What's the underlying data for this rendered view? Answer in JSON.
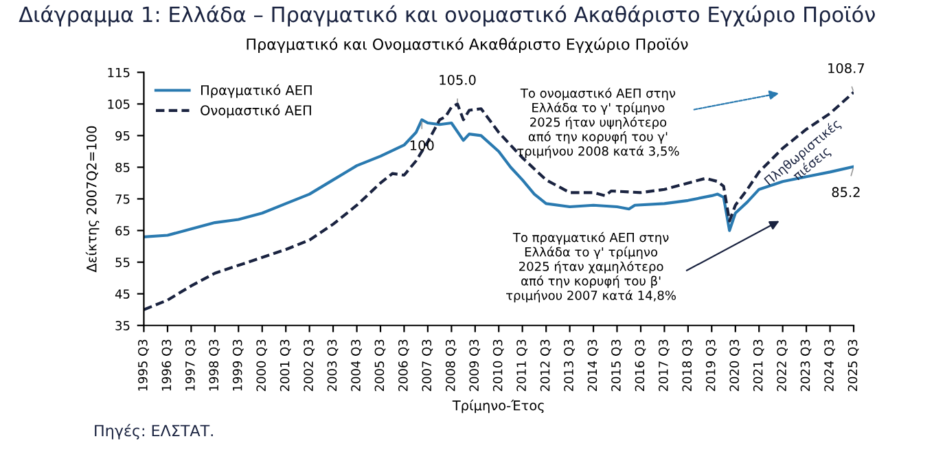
{
  "chart_data": {
    "type": "line",
    "title": "Διάγραμμα 1: Ελλάδα – Πραγματικό και ονομαστικό Ακαθάριστο Εγχώριο Προϊόν",
    "subtitle": "Πραγματικό και Ονομαστικό Ακαθάριστο Εγχώριο Προϊόν",
    "xlabel": "Τρίμηνο-Έτος",
    "ylabel": "Δείκτης 2007Q2=100",
    "series": [
      {
        "name": "Πραγματικό ΑΕΠ",
        "color": "#2a7ab0",
        "line_style": "solid",
        "x": [
          "1995-07",
          "1996-07",
          "1997-07",
          "1998-07",
          "1999-07",
          "2000-07",
          "2001-07",
          "2002-07",
          "2003-07",
          "2004-07",
          "2005-07",
          "2006-07",
          "2007-01",
          "2007-04",
          "2007-07",
          "2008-01",
          "2008-07",
          "2009-01",
          "2009-04",
          "2009-10",
          "2010-07",
          "2011-01",
          "2011-07",
          "2012-01",
          "2012-07",
          "2013-07",
          "2014-07",
          "2015-07",
          "2016-01",
          "2016-04",
          "2017-07",
          "2018-07",
          "2019-07",
          "2019-10",
          "2020-01",
          "2020-04",
          "2020-07",
          "2021-01",
          "2021-07",
          "2022-07",
          "2023-07",
          "2024-07",
          "2025-07"
        ],
        "values": [
          63,
          63.5,
          65.5,
          67.5,
          68.5,
          70.5,
          73.5,
          76.5,
          81,
          85.5,
          88.5,
          92,
          96,
          100,
          99,
          98.5,
          99,
          93.5,
          95.5,
          95,
          90,
          85,
          81,
          76.5,
          73.5,
          72.5,
          73,
          72.5,
          71.8,
          73,
          73.5,
          74.5,
          76,
          76.5,
          75.5,
          65,
          70.5,
          74,
          78,
          80.5,
          82,
          83.5,
          85.2
        ]
      },
      {
        "name": "Ονομαστικό ΑΕΠ",
        "color": "#1a2340",
        "line_style": "dashed",
        "x": [
          "1995-07",
          "1996-07",
          "1997-07",
          "1998-07",
          "1999-07",
          "2000-07",
          "2001-07",
          "2002-07",
          "2003-07",
          "2004-07",
          "2005-07",
          "2006-01",
          "2006-07",
          "2007-01",
          "2007-07",
          "2008-01",
          "2008-04",
          "2008-07",
          "2008-10",
          "2009-01",
          "2009-04",
          "2009-10",
          "2010-07",
          "2011-07",
          "2012-07",
          "2013-07",
          "2014-07",
          "2015-01",
          "2015-04",
          "2016-07",
          "2017-07",
          "2018-07",
          "2019-04",
          "2019-10",
          "2020-01",
          "2020-04",
          "2020-07",
          "2021-01",
          "2021-07",
          "2022-07",
          "2023-07",
          "2024-07",
          "2025-07"
        ],
        "values": [
          40,
          43,
          47.5,
          51.5,
          54,
          56.5,
          59,
          62,
          67,
          73,
          80,
          83,
          82.5,
          87,
          93,
          100,
          101,
          104,
          105,
          100,
          103,
          103.5,
          96,
          88,
          81,
          77,
          77,
          76,
          77.5,
          77,
          78,
          80,
          81.5,
          80.5,
          79,
          68,
          73,
          78,
          83.5,
          91,
          97,
          102,
          108.7
        ]
      }
    ],
    "xlim": [
      "1995-07",
      "2025-07"
    ],
    "xticks": [
      {
        "value": "1995-07",
        "label": "1995 Q3"
      },
      {
        "value": "1996-07",
        "label": "1996 Q3"
      },
      {
        "value": "1997-07",
        "label": "1997 Q3"
      },
      {
        "value": "1998-07",
        "label": "1998 Q3"
      },
      {
        "value": "1999-07",
        "label": "1999 Q3"
      },
      {
        "value": "2000-07",
        "label": "2000 Q3"
      },
      {
        "value": "2001-07",
        "label": "2001 Q3"
      },
      {
        "value": "2002-07",
        "label": "2002 Q3"
      },
      {
        "value": "2003-07",
        "label": "2003 Q3"
      },
      {
        "value": "2004-07",
        "label": "2004 Q3"
      },
      {
        "value": "2005-07",
        "label": "2005 Q3"
      },
      {
        "value": "2006-07",
        "label": "2006 Q3"
      },
      {
        "value": "2007-07",
        "label": "2007 Q3"
      },
      {
        "value": "2008-07",
        "label": "2008 Q3"
      },
      {
        "value": "2009-07",
        "label": "2009 Q3"
      },
      {
        "value": "2010-07",
        "label": "2010 Q3"
      },
      {
        "value": "2011-07",
        "label": "2011 Q3"
      },
      {
        "value": "2012-07",
        "label": "2012 Q3"
      },
      {
        "value": "2013-07",
        "label": "2013 Q3"
      },
      {
        "value": "2014-07",
        "label": "2014 Q3"
      },
      {
        "value": "2015-07",
        "label": "2015 Q3"
      },
      {
        "value": "2016-07",
        "label": "2016 Q3"
      },
      {
        "value": "2017-07",
        "label": "2017 Q3"
      },
      {
        "value": "2018-07",
        "label": "2018 Q3"
      },
      {
        "value": "2019-07",
        "label": "2019 Q3"
      },
      {
        "value": "2020-07",
        "label": "2020 Q3"
      },
      {
        "value": "2021-07",
        "label": "2021 Q3"
      },
      {
        "value": "2022-07",
        "label": "2022 Q3"
      },
      {
        "value": "2023-07",
        "label": "2023 Q3"
      },
      {
        "value": "2024-07",
        "label": "2024 Q3"
      },
      {
        "value": "2025-07",
        "label": "2025 Q3"
      }
    ],
    "ylim": [
      35,
      115
    ],
    "yticks": [
      35,
      45,
      55,
      65,
      75,
      85,
      95,
      105,
      115
    ],
    "grid": false,
    "legend": "top left",
    "marker": "none",
    "annotations": [
      {
        "text": "105.0",
        "x": "2008-10",
        "y": 105
      },
      {
        "text": "100",
        "x": "2007-04",
        "y": 100
      },
      {
        "text": "108.7",
        "x": "2025-07",
        "y": 108.7
      },
      {
        "text": "85.2",
        "x": "2025-07",
        "y": 85.2
      },
      "Το ονομαστικό ΑΕΠ στην\nΕλλάδα το γ' τρίμηνο\n2025 ήταν υψηλότερο\nαπό την κορυφή του γ'\nτριμήνου 2008 κατά 3,5%",
      "Το πραγματικό ΑΕΠ στην\nΕλλάδα το γ' τρίμηνο\n2025 ήταν χαμηλότερο\nαπό την κορυφή του β'\nτριμήνου 2007 κατά 14,8%",
      "Πληθωριστικές\nπιέσεις",
      "Πηγές: ΕΛΣΤΑΤ."
    ]
  }
}
